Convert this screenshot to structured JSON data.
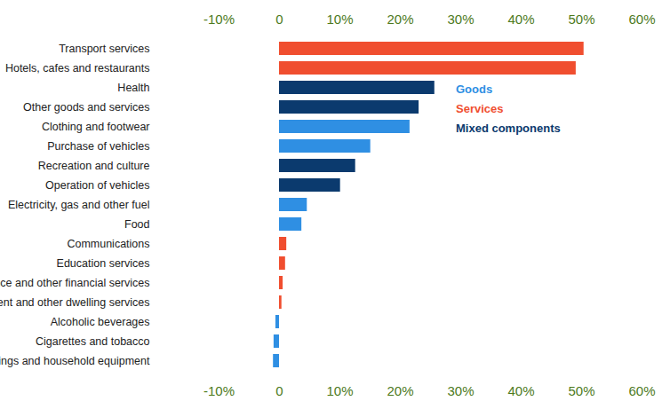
{
  "chart_data": {
    "type": "bar",
    "orientation": "horizontal",
    "categories": [
      "Transport services",
      "Hotels, cafes and restaurants",
      "Health",
      "Other goods and services",
      "Clothing and footwear",
      "Purchase of vehicles",
      "Recreation and culture",
      "Operation of vehicles",
      "Electricity, gas and other fuel",
      "Food",
      "Communications",
      "Education services",
      "Insurance and other financial services",
      "Rent and other dwelling services",
      "Alcoholic beverages",
      "Cigarettes and tobacco",
      "Furnishings and household equipment"
    ],
    "series": [
      {
        "name": "Goods",
        "color": "#2f8fe3",
        "values": [
          null,
          null,
          null,
          null,
          21.6,
          15.1,
          null,
          null,
          4.6,
          3.7,
          null,
          null,
          null,
          null,
          -0.6,
          -0.9,
          -1.0
        ]
      },
      {
        "name": "Services",
        "color": "#f04e2f",
        "values": [
          50.4,
          49.1,
          null,
          null,
          null,
          null,
          null,
          null,
          null,
          null,
          1.2,
          1.0,
          0.6,
          0.4,
          null,
          null,
          null
        ]
      },
      {
        "name": "Mixed components",
        "color": "#0b3a6e",
        "values": [
          null,
          null,
          25.7,
          23.1,
          null,
          null,
          12.6,
          10.1,
          null,
          null,
          null,
          null,
          null,
          null,
          null,
          null,
          null
        ]
      }
    ],
    "xlim": [
      -10,
      60
    ],
    "xticks": [
      {
        "value": -10,
        "label": "-10%"
      },
      {
        "value": 0,
        "label": "0"
      },
      {
        "value": 10,
        "label": "10%"
      },
      {
        "value": 20,
        "label": "20%"
      },
      {
        "value": 30,
        "label": "30%"
      },
      {
        "value": 40,
        "label": "40%"
      },
      {
        "value": 50,
        "label": "50%"
      },
      {
        "value": 60,
        "label": "60%"
      }
    ],
    "grid": false,
    "legend": "top right"
  }
}
